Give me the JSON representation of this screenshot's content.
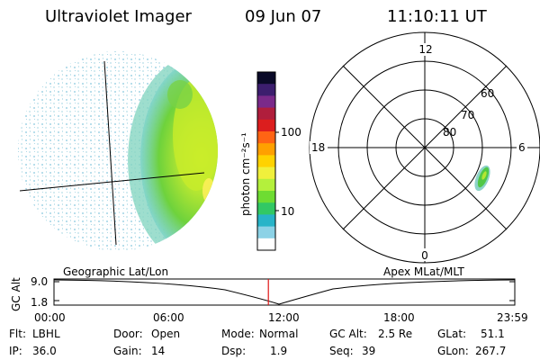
{
  "header": {
    "instrument": "Ultraviolet Imager",
    "date": "09 Jun 07",
    "time": "11:10:11 UT"
  },
  "colorbar": {
    "label": "photon cm⁻²s⁻¹",
    "ticks": [
      "100",
      "10"
    ],
    "colors": [
      "#0a0a28",
      "#3c1e6e",
      "#7a2a8a",
      "#b01e3c",
      "#dc1e1e",
      "#ff6414",
      "#ffa000",
      "#ffd200",
      "#f0f03c",
      "#b4f03c",
      "#6edc32",
      "#32c864",
      "#28b4c8",
      "#8cd2e6",
      "#ffffff"
    ]
  },
  "polar_plot": {
    "mlt_labels": {
      "top": "12",
      "left": "18",
      "right": "6",
      "bottom": "0"
    },
    "lat_labels": [
      "60",
      "70",
      "80"
    ]
  },
  "timeline": {
    "left_label": "Geographic Lat/Lon",
    "right_label": "Apex MLat/MLT",
    "y_axis_title": "GC Alt",
    "y_ticks": [
      "9.0",
      "1.8"
    ],
    "time_ticks": [
      "00:00",
      "06:00",
      "12:00",
      "18:00",
      "23:59"
    ],
    "marker_time": "11:10",
    "marker_color": "#e01414"
  },
  "info": {
    "flt_label": "Flt:",
    "flt_value": "LBHL",
    "ip_label": "IP:",
    "ip_value": "36.0",
    "door_label": "Door:",
    "door_value": "Open",
    "gain_label": "Gain:",
    "gain_value": "14",
    "mode_label": "Mode:",
    "mode_value": "Normal",
    "dsp_label": "Dsp:",
    "dsp_value": "1.9",
    "gcalt_label": "GC Alt:",
    "gcalt_value": "2.5 Re",
    "seq_label": "Seq:",
    "seq_value": "39",
    "glat_label": "GLat:",
    "glat_value": "51.1",
    "glon_label": "GLon:",
    "glon_value": "267.7"
  }
}
